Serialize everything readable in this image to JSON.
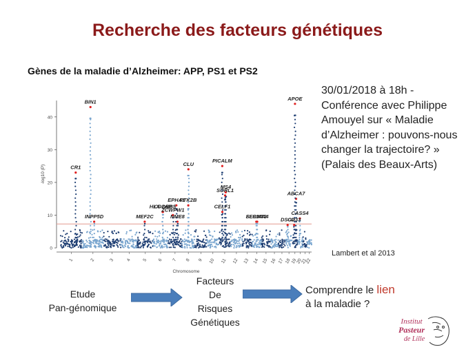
{
  "slide": {
    "title": "Recherche des facteurs génétiques",
    "subtitle": "Gènes de la maladie d’Alzheimer: APP, PS1 et PS2",
    "announcement_lines": [
      "30/01/2018 à 18h -",
      "Conférence avec Philippe",
      "Amouyel sur « Maladie",
      "d’Alzheimer : pouvons-nous",
      "changer la trajectoire? »",
      "(Palais des Beaux-Arts)"
    ],
    "citation": "Lambert et al 2013",
    "flow": {
      "step1_lines": [
        "Etude",
        "Pan-génomique"
      ],
      "step2_lines": [
        "Facteurs",
        "De",
        "Risques",
        "Génétiques"
      ],
      "step3_prefix": "Comprendre le ",
      "step3_highlight": "lien",
      "step3_suffix": "à la maladie ?",
      "arrow_color": "#4a7ebb"
    },
    "logo": {
      "line1": "Institut",
      "line2": "Pasteur",
      "line3": "de Lille",
      "color": "#b0305a"
    }
  },
  "chart_data": {
    "type": "scatter",
    "subtype": "manhattan",
    "xlabel": "Chromosome",
    "ylabel": "-log10 (P)",
    "ylim": [
      0,
      45
    ],
    "yticks": [
      0,
      10,
      20,
      30,
      40
    ],
    "xticks": [
      "1",
      "2",
      "3",
      "4",
      "5",
      "6",
      "7",
      "8",
      "9",
      "10",
      "11",
      "12",
      "13",
      "14",
      "15",
      "16",
      "17",
      "18",
      "19",
      "20",
      "21",
      "22"
    ],
    "threshold": 7.3,
    "colors": {
      "dark": "#1f3f73",
      "light": "#7aa6cf",
      "threshold": "#e39a8f",
      "highlight": "#e02020"
    },
    "labeled_loci": [
      {
        "gene": "BIN1",
        "chrom": "2",
        "value": 43
      },
      {
        "gene": "CR1",
        "chrom": "1",
        "value": 23
      },
      {
        "gene": "INPP5D",
        "chrom": "2",
        "value": 8
      },
      {
        "gene": "HLA-DRB5",
        "chrom": "6",
        "value": 11
      },
      {
        "gene": "MEF2C",
        "chrom": "5",
        "value": 8
      },
      {
        "gene": "CD2AP",
        "chrom": "6",
        "value": 11
      },
      {
        "gene": "NME8",
        "chrom": "7",
        "value": 8
      },
      {
        "gene": "EPHA1",
        "chrom": "7",
        "value": 13
      },
      {
        "gene": "ZCWPW1",
        "chrom": "7",
        "value": 10
      },
      {
        "gene": "CLU",
        "chrom": "8",
        "value": 24
      },
      {
        "gene": "PTK2B",
        "chrom": "8",
        "value": 13
      },
      {
        "gene": "CELF1",
        "chrom": "11",
        "value": 11
      },
      {
        "gene": "MS4",
        "chrom": "11",
        "value": 17
      },
      {
        "gene": "PICALM",
        "chrom": "11",
        "value": 25
      },
      {
        "gene": "SORL1",
        "chrom": "11",
        "value": 16
      },
      {
        "gene": "FERMT2",
        "chrom": "14",
        "value": 8
      },
      {
        "gene": "SLC24A4",
        "chrom": "14",
        "value": 8
      },
      {
        "gene": "ABCA7",
        "chrom": "19",
        "value": 15
      },
      {
        "gene": "APOE",
        "chrom": "19",
        "value": 44
      },
      {
        "gene": "CASS4",
        "chrom": "20",
        "value": 9
      },
      {
        "gene": "DSG2",
        "chrom": "18",
        "value": 7
      },
      {
        "gene": "CD33",
        "chrom": "19",
        "value": 7
      }
    ]
  }
}
